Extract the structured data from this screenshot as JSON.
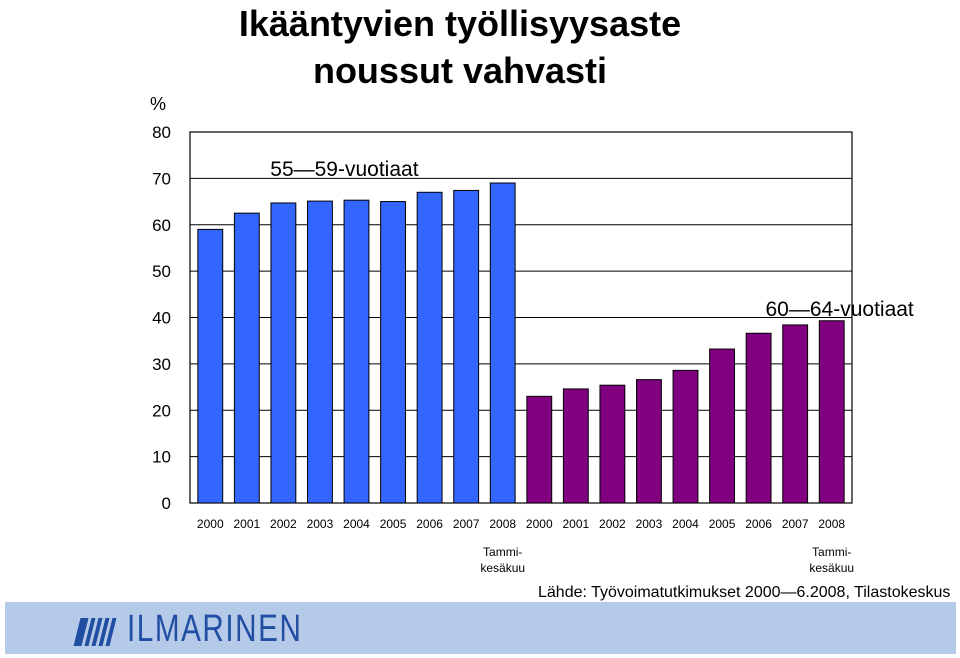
{
  "title_line1": "Ikääntyvien työllisyysaste",
  "title_line2": "noussut vahvasti",
  "source": "Lähde: Työvoimatutkimukset 2000—6.2008, Tilastokeskus",
  "logo": {
    "text": "ILMARINEN",
    "icon": "ilmarinen-logo-icon",
    "color": "#1f4ea3"
  },
  "footer_color": "#b5c9e8",
  "chart_data": {
    "type": "bar",
    "ylabel": "%",
    "ylim": [
      0,
      80
    ],
    "yticks": [
      0,
      10,
      20,
      30,
      40,
      50,
      60,
      70,
      80
    ],
    "grid": true,
    "series": [
      {
        "name": "55—59-vuotiaat",
        "color": "#3366ff",
        "categories": [
          "2000",
          "2001",
          "2002",
          "2003",
          "2004",
          "2005",
          "2006",
          "2007",
          "2008"
        ],
        "values": [
          59.0,
          62.5,
          64.7,
          65.1,
          65.3,
          65.0,
          67.0,
          67.4,
          69.0
        ],
        "note": "Tammi-\nkesäkuu"
      },
      {
        "name": "60—64-vuotiaat",
        "color": "#800080",
        "categories": [
          "2000",
          "2001",
          "2002",
          "2003",
          "2004",
          "2005",
          "2006",
          "2007",
          "2008"
        ],
        "values": [
          23.0,
          24.6,
          25.4,
          26.6,
          28.6,
          33.2,
          36.6,
          38.4,
          39.3
        ],
        "note": "Tammi-\nkesäkuu"
      }
    ]
  }
}
